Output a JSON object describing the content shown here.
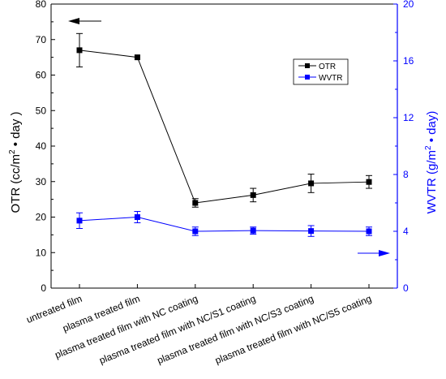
{
  "chart_data": {
    "type": "line",
    "categories": [
      "untreated film",
      "plasma treated film",
      "plasma treated film with NC coating",
      "plasma treated film with NC/S1 coating",
      "plasma treated film with NC/S3 coating",
      "plasma treated film with NC/S5 coating"
    ],
    "y_left": {
      "label": "OTR (cc/m",
      "label_sup": "2",
      "label_tail": " • day )",
      "range": [
        0,
        80
      ],
      "ticks": [
        "0",
        "10",
        "20",
        "30",
        "40",
        "50",
        "60",
        "70",
        "80"
      ]
    },
    "y_right": {
      "label": "WVTR (g/m",
      "label_sup": "2",
      "label_tail": " • day)",
      "range": [
        0,
        20
      ],
      "ticks": [
        "0",
        "4",
        "8",
        "12",
        "16",
        "20"
      ]
    },
    "series": [
      {
        "name": "OTR",
        "axis": "left",
        "color": "#000000",
        "values": [
          67.0,
          65.0,
          24.0,
          26.2,
          29.5,
          29.9
        ],
        "errors": [
          4.7,
          0,
          1.2,
          1.9,
          2.6,
          1.8
        ]
      },
      {
        "name": "WVTR",
        "axis": "right",
        "color": "#0000ff",
        "values": [
          4.75,
          5.0,
          4.0,
          4.05,
          4.02,
          4.0
        ],
        "errors": [
          0.55,
          0.4,
          0.3,
          0.25,
          0.38,
          0.3
        ]
      }
    ],
    "legend": "top-right",
    "grid": false
  }
}
